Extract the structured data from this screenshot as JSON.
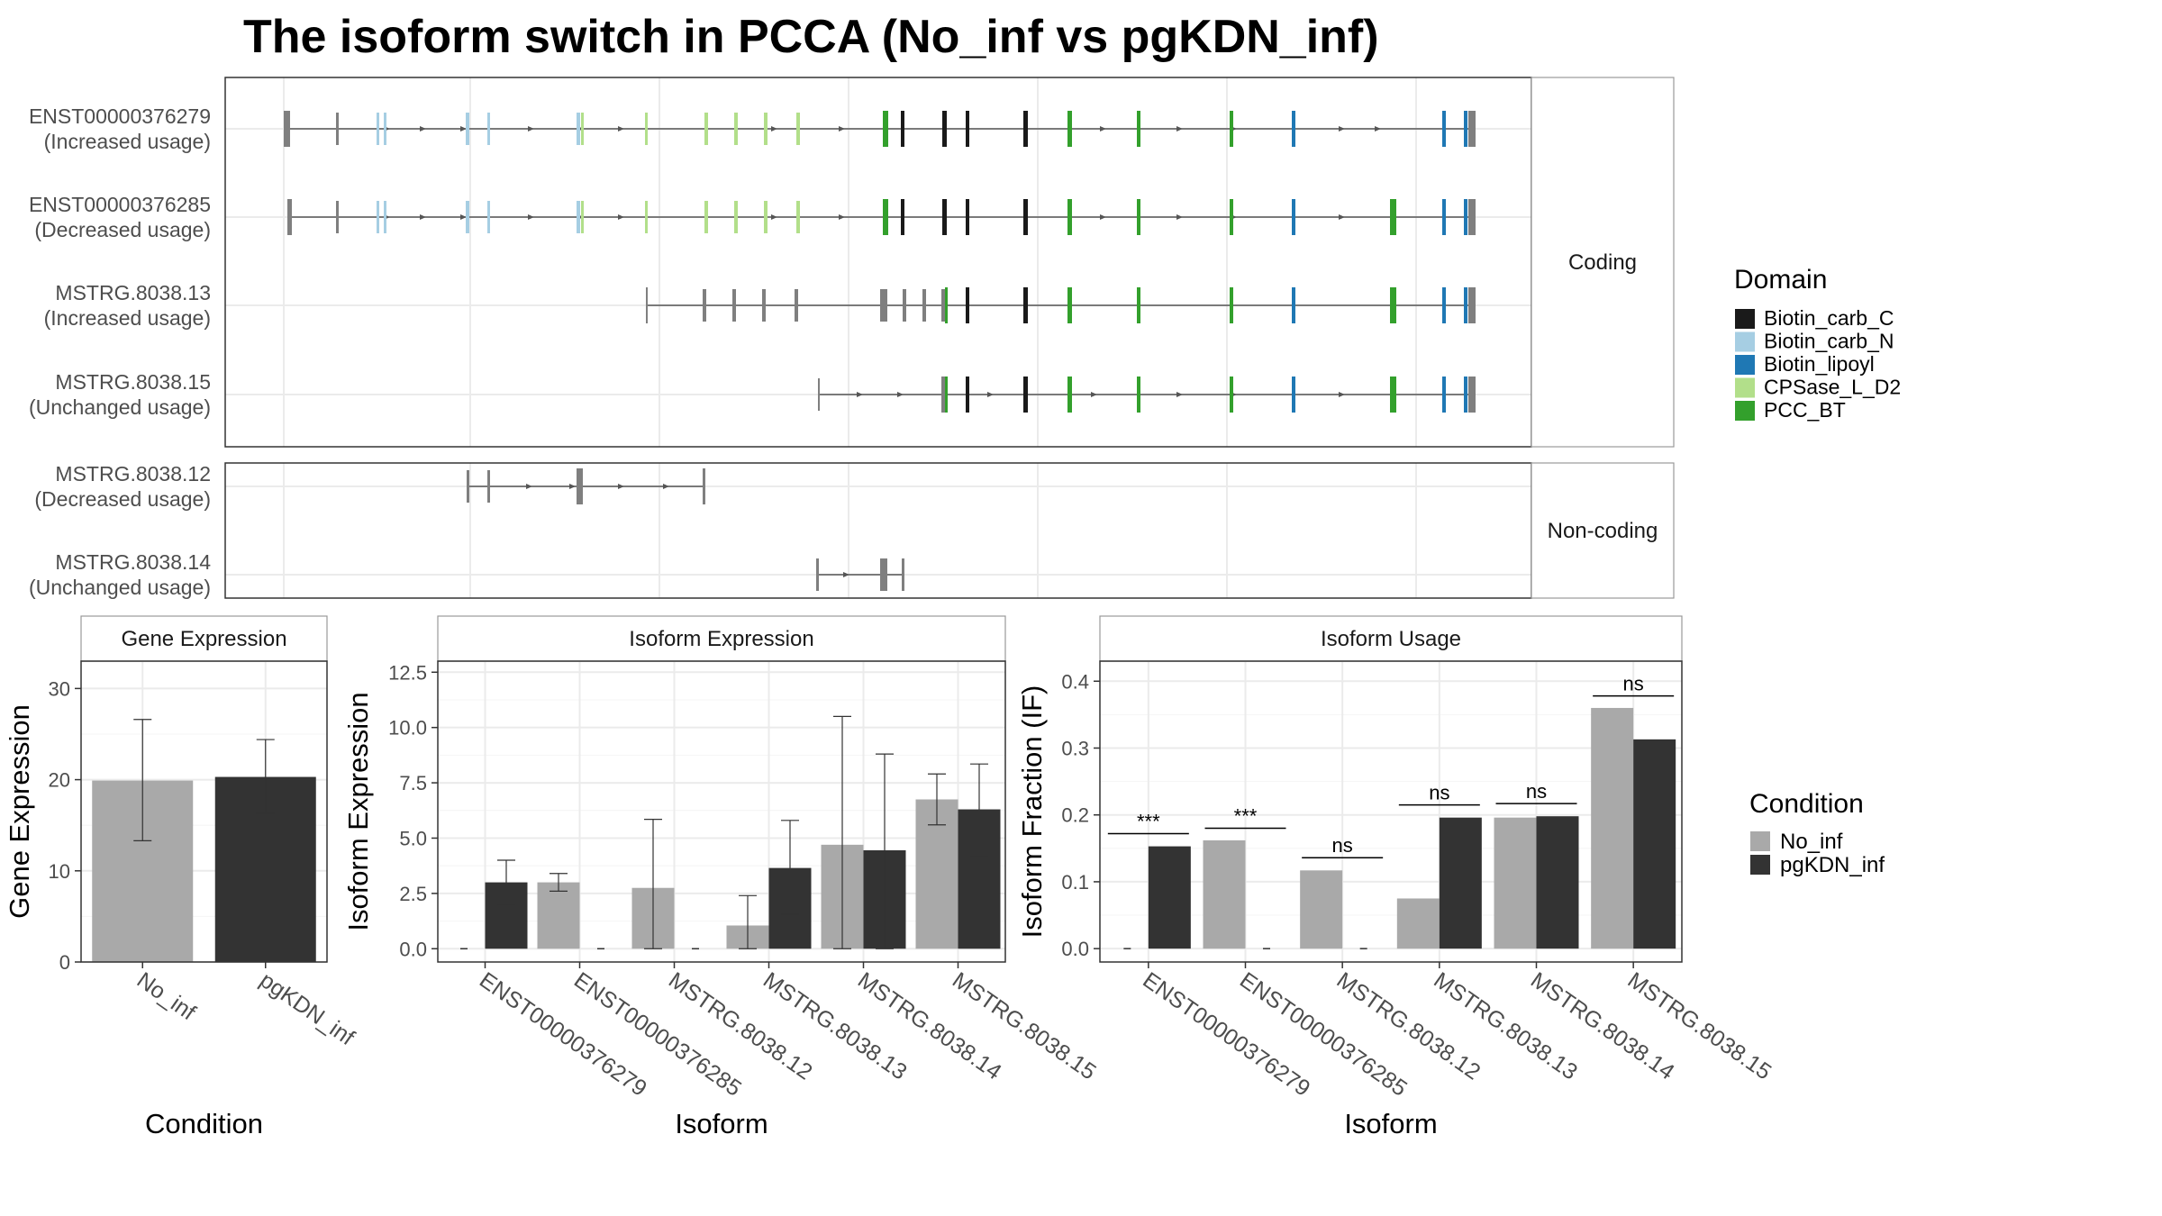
{
  "title": "The isoform switch in PCCA (No_inf vs pgKDN_inf)",
  "colors": {
    "no_inf": "#A9A9A9",
    "pgkdn_inf": "#333333",
    "intron": "#555555",
    "exon_plain": "#7F7F7F",
    "Biotin_carb_C": "#1A1A1A",
    "Biotin_carb_N": "#A6CEE3",
    "Biotin_lipoyl": "#1F78B4",
    "CPSase_L_D2": "#B2DF8A",
    "PCC_BT": "#33A02C"
  },
  "chart_data": [
    {
      "type": "gene-structure",
      "panels": [
        {
          "strip": "Coding",
          "tracks": [
            {
              "id": "ENST00000376279",
              "label": "(Increased usage)"
            },
            {
              "id": "ENST00000376285",
              "label": "(Decreased usage)"
            },
            {
              "id": "MSTRG.8038.13",
              "label": "(Increased usage)"
            },
            {
              "id": "MSTRG.8038.15",
              "label": "(Unchanged usage)"
            }
          ]
        },
        {
          "strip": "Non-coding",
          "tracks": [
            {
              "id": "MSTRG.8038.12",
              "label": "(Decreased usage)"
            },
            {
              "id": "MSTRG.8038.14",
              "label": "(Unchanged usage)"
            }
          ]
        }
      ],
      "legend": {
        "title": "Domain",
        "items": [
          "Biotin_carb_C",
          "Biotin_carb_N",
          "Biotin_lipoyl",
          "CPSase_L_D2",
          "PCC_BT"
        ]
      }
    },
    {
      "type": "bar",
      "title": "Gene Expression",
      "xlabel": "Condition",
      "ylabel": "Gene Expression",
      "ylim": [
        0,
        33
      ],
      "yticks": [
        0,
        10,
        20,
        30
      ],
      "categories": [
        "No_inf",
        "pgKDN_inf"
      ],
      "values": [
        19.9,
        20.3
      ],
      "err_low": [
        13.3,
        16.3
      ],
      "err_high": [
        26.6,
        24.4
      ]
    },
    {
      "type": "bar",
      "title": "Isoform Expression",
      "xlabel": "Isoform",
      "ylabel": "Isoform Expression",
      "ylim": [
        -0.6,
        13.0
      ],
      "yticks": [
        0.0,
        2.5,
        5.0,
        7.5,
        10.0,
        12.5
      ],
      "ytick_labels": [
        "0.0",
        "2.5",
        "5.0",
        "7.5",
        "10.0",
        "12.5"
      ],
      "categories": [
        "ENST00000376279",
        "ENST00000376285",
        "MSTRG.8038.12",
        "MSTRG.8038.13",
        "MSTRG.8038.14",
        "MSTRG.8038.15"
      ],
      "series": [
        {
          "name": "No_inf",
          "values": [
            0.0,
            3.0,
            2.75,
            1.05,
            4.7,
            6.75
          ],
          "err_low": [
            0.0,
            2.6,
            0.0,
            0.0,
            0.0,
            5.6
          ],
          "err_high": [
            0.0,
            3.4,
            5.85,
            2.4,
            10.5,
            7.9
          ]
        },
        {
          "name": "pgKDN_inf",
          "values": [
            3.0,
            0.0,
            0.0,
            3.65,
            4.45,
            6.3
          ],
          "err_low": [
            2.0,
            0.0,
            0.0,
            1.55,
            0.0,
            4.2
          ],
          "err_high": [
            4.0,
            0.0,
            0.0,
            5.8,
            8.8,
            8.35
          ]
        }
      ]
    },
    {
      "type": "bar",
      "title": "Isoform Usage",
      "xlabel": "Isoform",
      "ylabel": "Isoform Fraction (IF)",
      "ylim": [
        -0.02,
        0.43
      ],
      "yticks": [
        0.0,
        0.1,
        0.2,
        0.3,
        0.4
      ],
      "ytick_labels": [
        "0.0",
        "0.1",
        "0.2",
        "0.3",
        "0.4"
      ],
      "categories": [
        "ENST00000376279",
        "ENST00000376285",
        "MSTRG.8038.12",
        "MSTRG.8038.13",
        "MSTRG.8038.14",
        "MSTRG.8038.15"
      ],
      "series": [
        {
          "name": "No_inf",
          "values": [
            0.0,
            0.162,
            0.117,
            0.075,
            0.196,
            0.36
          ]
        },
        {
          "name": "pgKDN_inf",
          "values": [
            0.153,
            0.0,
            0.0,
            0.196,
            0.198,
            0.313
          ]
        }
      ],
      "annotations": [
        "***",
        "***",
        "ns",
        "ns",
        "ns",
        "ns"
      ],
      "annotation_y": [
        0.172,
        0.18,
        0.136,
        0.215,
        0.217,
        0.378
      ]
    }
  ],
  "condition_legend": {
    "title": "Condition",
    "items": [
      "No_inf",
      "pgKDN_inf"
    ]
  }
}
